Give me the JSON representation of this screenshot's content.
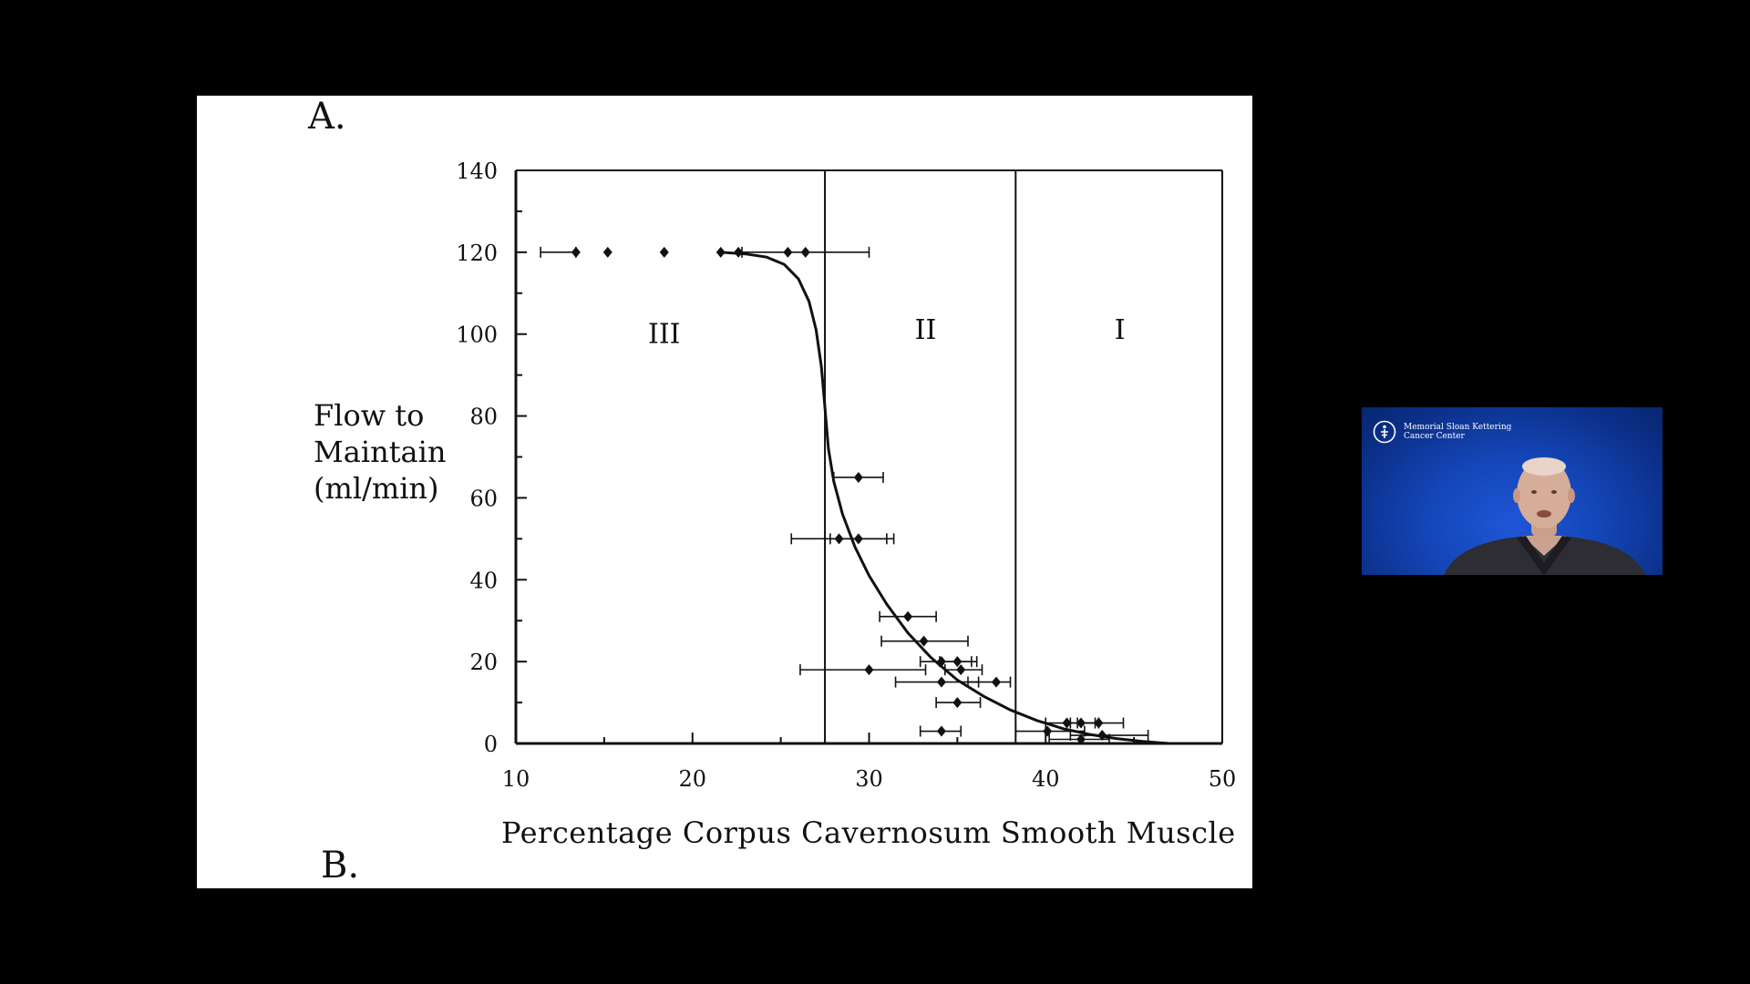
{
  "slide": {
    "panel_a_label": "A.",
    "panel_b_label": "B."
  },
  "chart_data": {
    "type": "scatter",
    "ylabel_lines": [
      "Flow to",
      "Maintain",
      "(ml/min)"
    ],
    "xlabel": "Percentage Corpus Cavernosum Smooth Muscle",
    "xlim": [
      10,
      50
    ],
    "ylim": [
      0,
      140
    ],
    "x_ticks": [
      10,
      20,
      30,
      40,
      50
    ],
    "y_ticks": [
      0,
      20,
      40,
      60,
      80,
      100,
      120,
      140
    ],
    "region_dividers_x": [
      27.5,
      38.3
    ],
    "regions": [
      {
        "label": "III",
        "x": 18.4,
        "y": 100
      },
      {
        "label": "II",
        "x": 33.2,
        "y": 101
      },
      {
        "label": "I",
        "x": 44.2,
        "y": 101
      }
    ],
    "points": [
      {
        "x": 13.4,
        "y": 120,
        "xerr": [
          11.4,
          13.4
        ]
      },
      {
        "x": 15.2,
        "y": 120
      },
      {
        "x": 18.4,
        "y": 120
      },
      {
        "x": 21.6,
        "y": 120
      },
      {
        "x": 22.6,
        "y": 120
      },
      {
        "x": 25.4,
        "y": 120
      },
      {
        "x": 26.4,
        "y": 120,
        "xerr": [
          22.8,
          30.0
        ]
      },
      {
        "x": 29.4,
        "y": 65,
        "xerr": [
          28.0,
          30.8
        ]
      },
      {
        "x": 28.3,
        "y": 50,
        "xerr": [
          25.6,
          31.0
        ]
      },
      {
        "x": 29.4,
        "y": 50,
        "xerr": [
          27.8,
          31.4
        ]
      },
      {
        "x": 32.2,
        "y": 31,
        "xerr": [
          30.6,
          33.8
        ]
      },
      {
        "x": 33.1,
        "y": 25,
        "xerr": [
          30.7,
          35.6
        ]
      },
      {
        "x": 30.0,
        "y": 18,
        "xerr": [
          26.1,
          33.2
        ]
      },
      {
        "x": 34.1,
        "y": 20,
        "xerr": [
          32.9,
          35.8
        ]
      },
      {
        "x": 35.0,
        "y": 20,
        "xerr": [
          34.0,
          36.1
        ]
      },
      {
        "x": 35.2,
        "y": 18,
        "xerr": [
          34.3,
          36.4
        ]
      },
      {
        "x": 34.1,
        "y": 15,
        "xerr": [
          31.5,
          36.2
        ]
      },
      {
        "x": 37.2,
        "y": 15,
        "xerr": [
          35.6,
          38.0
        ]
      },
      {
        "x": 35.0,
        "y": 10,
        "xerr": [
          33.8,
          36.3
        ]
      },
      {
        "x": 34.1,
        "y": 3,
        "xerr": [
          32.9,
          35.2
        ]
      },
      {
        "x": 41.2,
        "y": 5,
        "xerr": [
          40.0,
          42.8
        ]
      },
      {
        "x": 42.0,
        "y": 5,
        "xerr": [
          41.4,
          43.0
        ]
      },
      {
        "x": 43.0,
        "y": 5,
        "xerr": [
          41.8,
          44.4
        ]
      },
      {
        "x": 40.1,
        "y": 3,
        "xerr": [
          38.3,
          42.2
        ]
      },
      {
        "x": 43.2,
        "y": 2,
        "xerr": [
          41.4,
          45.8
        ]
      },
      {
        "x": 42.0,
        "y": 1,
        "xerr": [
          40.2,
          43.6
        ]
      }
    ],
    "curve": [
      [
        21.6,
        120
      ],
      [
        23.0,
        119.6
      ],
      [
        24.2,
        118.8
      ],
      [
        25.2,
        117.0
      ],
      [
        26.0,
        113.5
      ],
      [
        26.6,
        108.0
      ],
      [
        27.0,
        101.0
      ],
      [
        27.3,
        92.0
      ],
      [
        27.5,
        82.0
      ],
      [
        27.7,
        72.0
      ],
      [
        28.0,
        64.0
      ],
      [
        28.5,
        56.0
      ],
      [
        29.2,
        48.0
      ],
      [
        30.0,
        41.0
      ],
      [
        31.0,
        34.0
      ],
      [
        32.2,
        27.0
      ],
      [
        33.5,
        21.0
      ],
      [
        35.0,
        15.5
      ],
      [
        36.5,
        11.5
      ],
      [
        38.0,
        8.2
      ],
      [
        39.5,
        5.6
      ],
      [
        41.0,
        3.6
      ],
      [
        42.5,
        2.2
      ],
      [
        44.0,
        1.2
      ],
      [
        45.5,
        0.5
      ],
      [
        47.0,
        0.0
      ]
    ]
  },
  "video_tile": {
    "org_name_line1": "Memorial Sloan Kettering",
    "org_name_line2": "Cancer Center"
  }
}
